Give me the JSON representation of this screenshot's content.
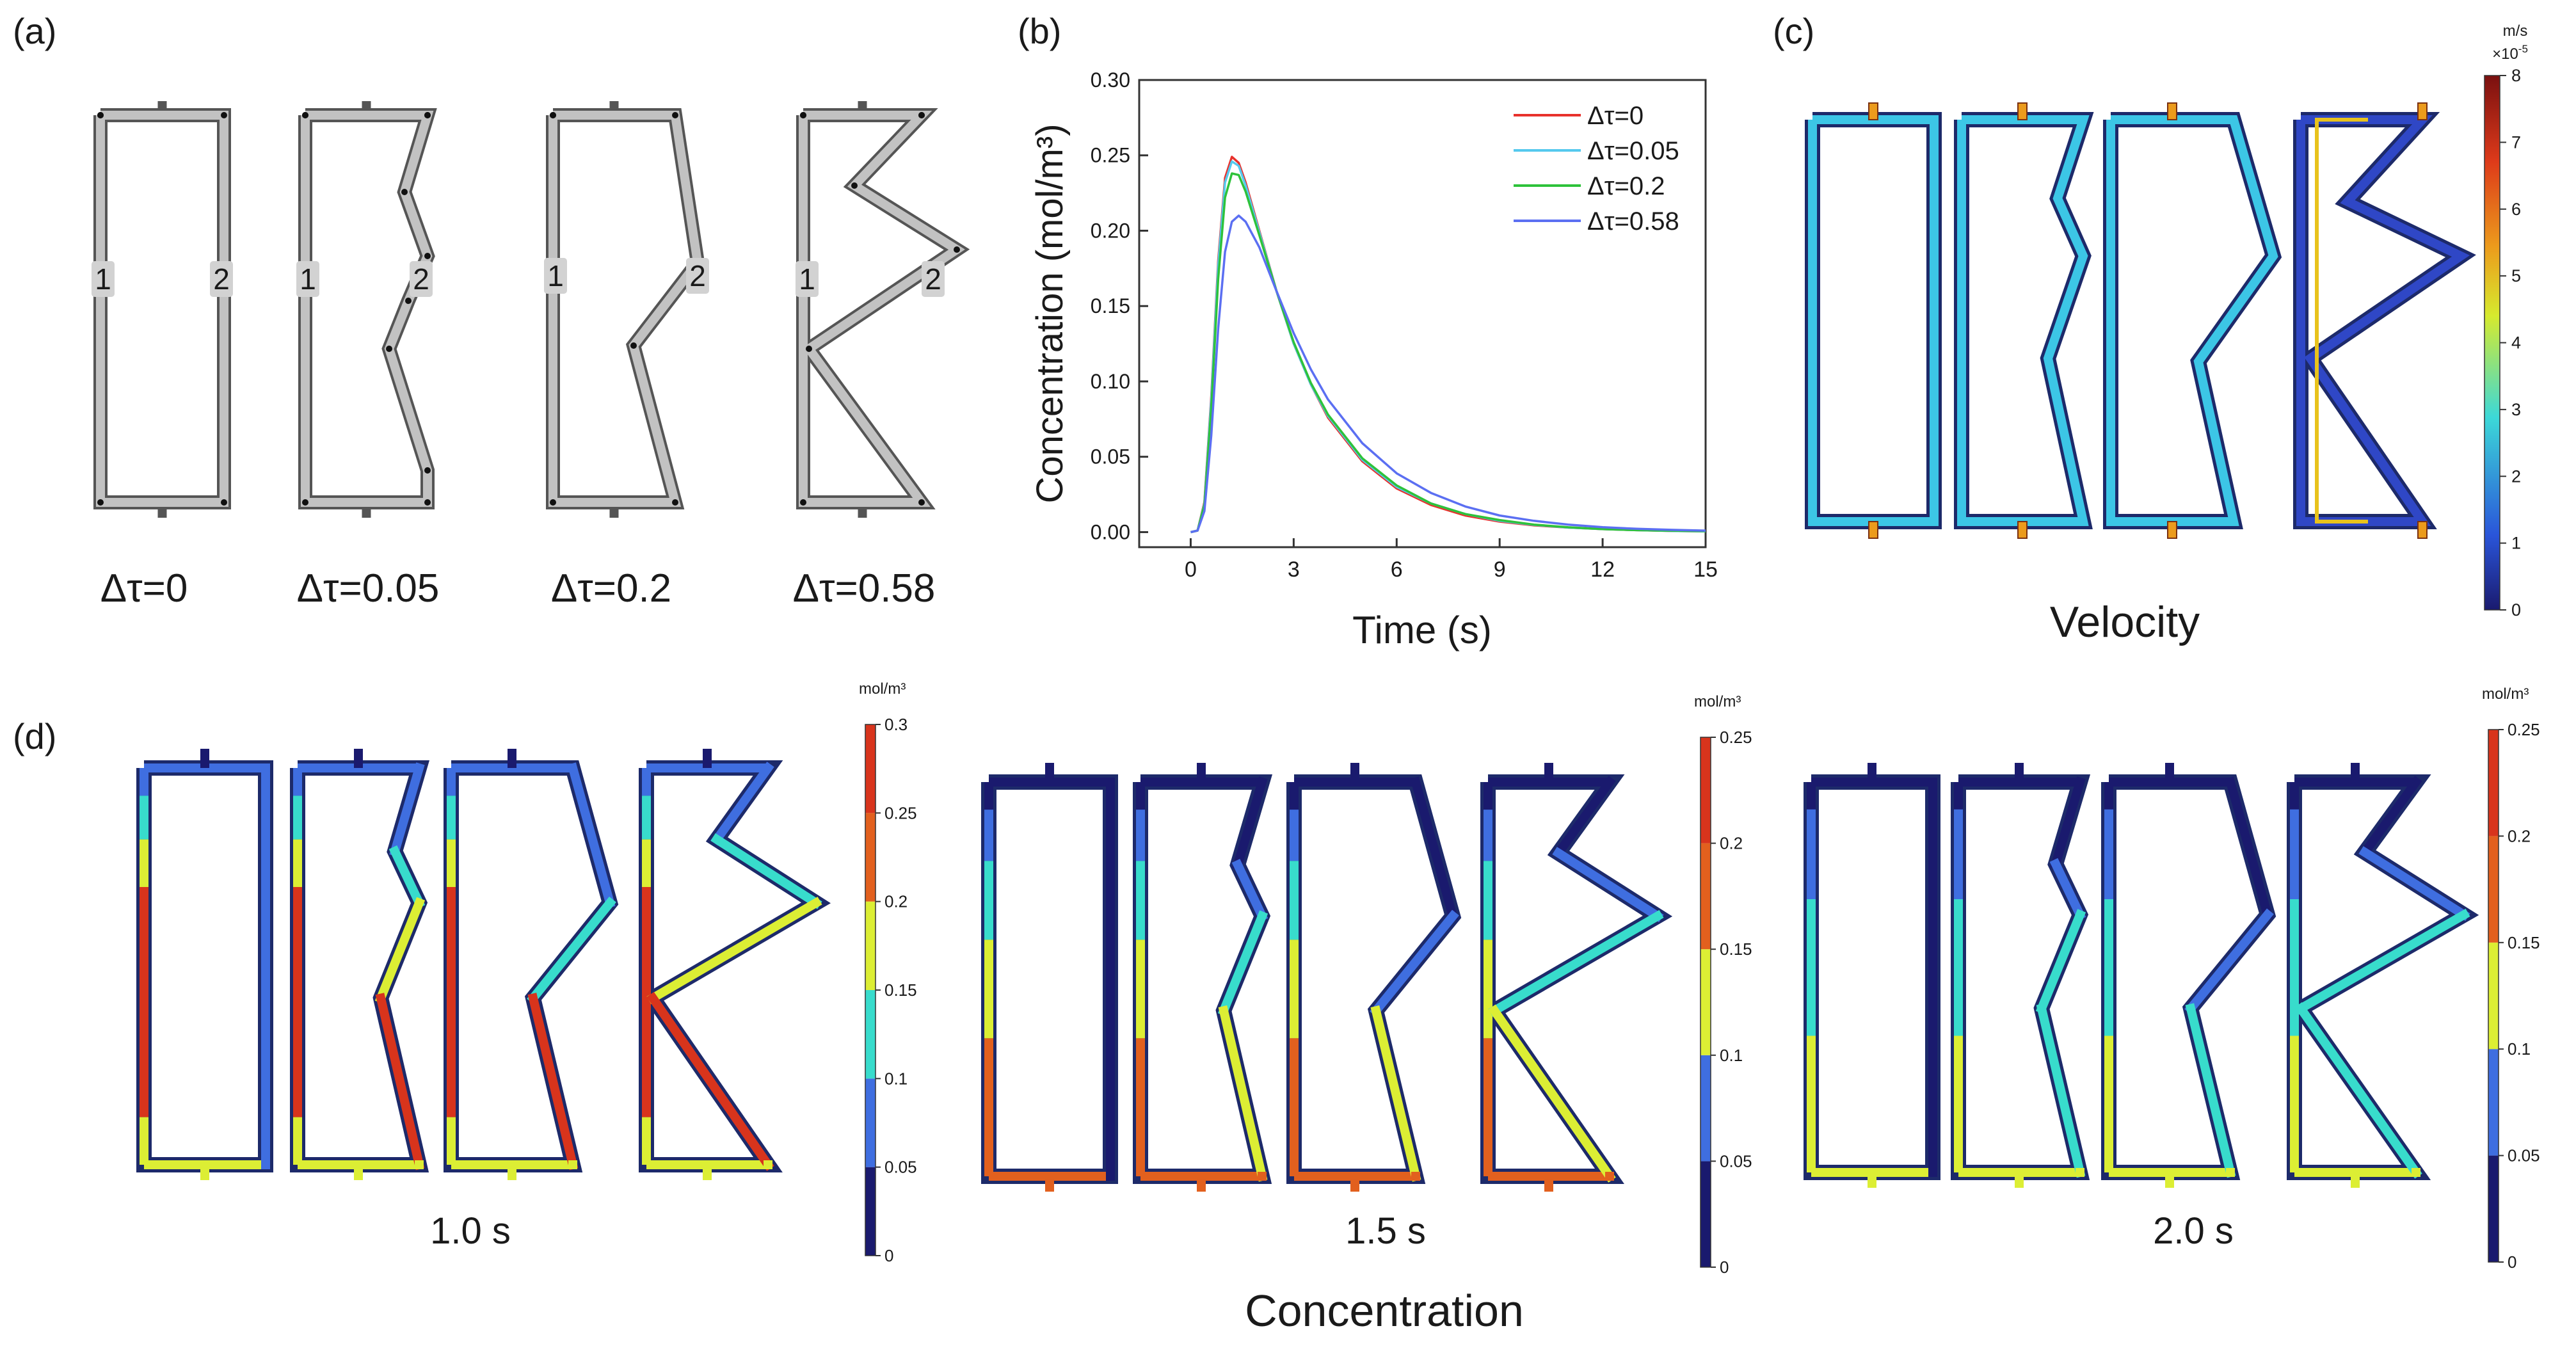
{
  "panels": {
    "a": {
      "label": "(a)",
      "node_labels": [
        "1",
        "2"
      ],
      "structure_labels": [
        "Δτ=0",
        "Δτ=0.05",
        "Δτ=0.2",
        "Δτ=0.58"
      ]
    },
    "b": {
      "label": "(b)"
    },
    "c": {
      "label": "(c)",
      "caption": "Velocity",
      "colorbar": {
        "unit": "m/s",
        "scale_base": "×10",
        "scale_exp": "-5",
        "ticks": [
          "0",
          "1",
          "2",
          "3",
          "4",
          "5",
          "6",
          "7",
          "8"
        ],
        "range": [
          0,
          8
        ]
      }
    },
    "d": {
      "label": "(d)",
      "caption": "Concentration",
      "groups": [
        {
          "time_label": "1.0 s",
          "colorbar": {
            "unit": "mol/m³",
            "ticks": [
              "0",
              "0.05",
              "0.1",
              "0.15",
              "0.2",
              "0.25",
              "0.3"
            ],
            "range": [
              0,
              0.3
            ]
          }
        },
        {
          "time_label": "1.5 s",
          "colorbar": {
            "unit": "mol/m³",
            "ticks": [
              "0",
              "0.05",
              "0.1",
              "0.15",
              "0.2",
              "0.25"
            ],
            "range": [
              0,
              0.25
            ]
          }
        },
        {
          "time_label": "2.0 s",
          "colorbar": {
            "unit": "mol/m³",
            "ticks": [
              "0",
              "0.05",
              "0.1",
              "0.15",
              "0.2",
              "0.25"
            ],
            "range": [
              0,
              0.25
            ]
          }
        }
      ]
    }
  },
  "palette": {
    "jet": [
      "#1a1a6e",
      "#2a55d9",
      "#3cd8d8",
      "#d6ea2e",
      "#ec9b1c",
      "#dd3a1a",
      "#7a1010"
    ],
    "conc_bands": [
      "#1a1a6e",
      "#3f6ee0",
      "#38dccc",
      "#dcee34",
      "#e2601e",
      "#d8341c"
    ],
    "frame_gray": "#c2c2c2",
    "frame_dark": "#555555",
    "velocity_main": "#3cc6e6",
    "velocity_low": "#2f47c6"
  },
  "chart_data": {
    "type": "line",
    "title": "",
    "xlabel": "Time (s)",
    "ylabel": "Concentration (mol/m³)",
    "xlim": [
      -1.5,
      15
    ],
    "ylim": [
      -0.01,
      0.3
    ],
    "xticks": [
      0,
      3,
      6,
      9,
      12,
      15
    ],
    "yticks": [
      0,
      0.05,
      0.1,
      0.15,
      0.2,
      0.25,
      0.3
    ],
    "legend_position": "top-right",
    "series": [
      {
        "name": "Δτ=0",
        "color": "#e8312c",
        "x": [
          0,
          0.2,
          0.4,
          0.6,
          0.8,
          1.0,
          1.2,
          1.4,
          1.6,
          2,
          2.5,
          3,
          3.5,
          4,
          5,
          6,
          7,
          8,
          9,
          10,
          11,
          12,
          13,
          14,
          15
        ],
        "y": [
          0,
          0.001,
          0.02,
          0.09,
          0.18,
          0.235,
          0.249,
          0.245,
          0.232,
          0.2,
          0.16,
          0.125,
          0.098,
          0.076,
          0.047,
          0.029,
          0.018,
          0.011,
          0.007,
          0.0045,
          0.003,
          0.002,
          0.0013,
          0.0008,
          0.0005
        ]
      },
      {
        "name": "Δτ=0.05",
        "color": "#55c9ee",
        "x": [
          0,
          0.2,
          0.4,
          0.6,
          0.8,
          1.0,
          1.2,
          1.4,
          1.6,
          2,
          2.5,
          3,
          3.5,
          4,
          5,
          6,
          7,
          8,
          9,
          10,
          11,
          12,
          13,
          14,
          15
        ],
        "y": [
          0,
          0.001,
          0.019,
          0.088,
          0.177,
          0.232,
          0.246,
          0.243,
          0.23,
          0.199,
          0.16,
          0.125,
          0.098,
          0.077,
          0.048,
          0.03,
          0.019,
          0.012,
          0.0075,
          0.0048,
          0.003,
          0.002,
          0.0013,
          0.0008,
          0.0005
        ]
      },
      {
        "name": "Δτ=0.2",
        "color": "#2ec23a",
        "x": [
          0,
          0.2,
          0.4,
          0.6,
          0.8,
          1.0,
          1.2,
          1.4,
          1.6,
          2,
          2.5,
          3,
          3.5,
          4,
          5,
          6,
          7,
          8,
          9,
          10,
          11,
          12,
          13,
          14,
          15
        ],
        "y": [
          0,
          0.001,
          0.018,
          0.082,
          0.168,
          0.222,
          0.238,
          0.237,
          0.226,
          0.197,
          0.16,
          0.126,
          0.099,
          0.078,
          0.049,
          0.031,
          0.019,
          0.012,
          0.008,
          0.005,
          0.0032,
          0.002,
          0.0013,
          0.0009,
          0.0006
        ]
      },
      {
        "name": "Δτ=0.58",
        "color": "#5b6ff2",
        "x": [
          0,
          0.2,
          0.4,
          0.6,
          0.8,
          1.0,
          1.2,
          1.4,
          1.6,
          2,
          2.5,
          3,
          3.5,
          4,
          5,
          6,
          7,
          8,
          9,
          10,
          11,
          12,
          13,
          14,
          15
        ],
        "y": [
          0,
          0.001,
          0.014,
          0.064,
          0.135,
          0.186,
          0.206,
          0.21,
          0.206,
          0.189,
          0.16,
          0.132,
          0.108,
          0.088,
          0.059,
          0.039,
          0.026,
          0.017,
          0.011,
          0.0075,
          0.005,
          0.0033,
          0.0022,
          0.0015,
          0.001
        ]
      }
    ]
  }
}
